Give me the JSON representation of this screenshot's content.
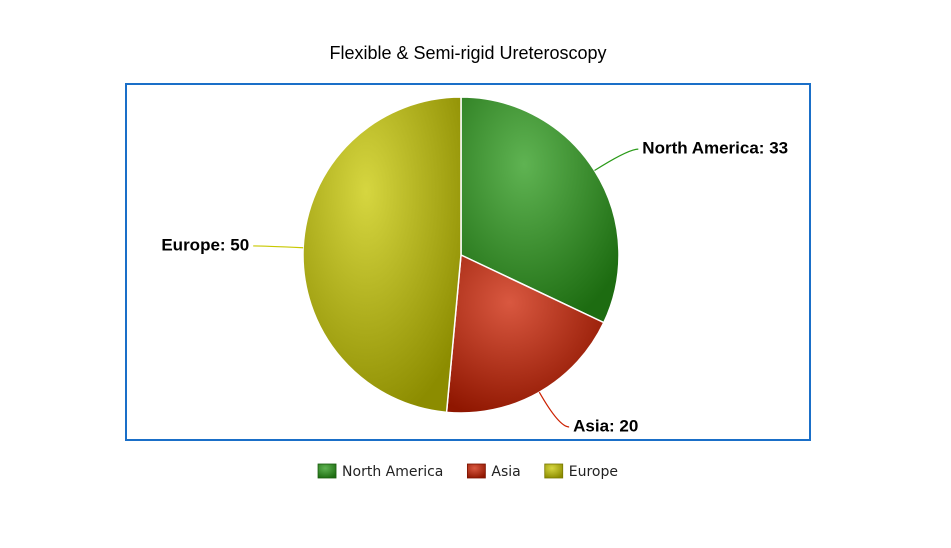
{
  "chart_data": {
    "type": "pie",
    "title": "Flexible & Semi-rigid Ureteroscopy",
    "categories": [
      "North America",
      "Asia",
      "Europe"
    ],
    "values": [
      33,
      20,
      50
    ],
    "value_labels": [
      "North America: 33",
      "Asia: 20",
      "Europe: 50"
    ],
    "colors": [
      "#2a9a18",
      "#cc2000",
      "#c8c800"
    ],
    "legend": "bottom"
  }
}
